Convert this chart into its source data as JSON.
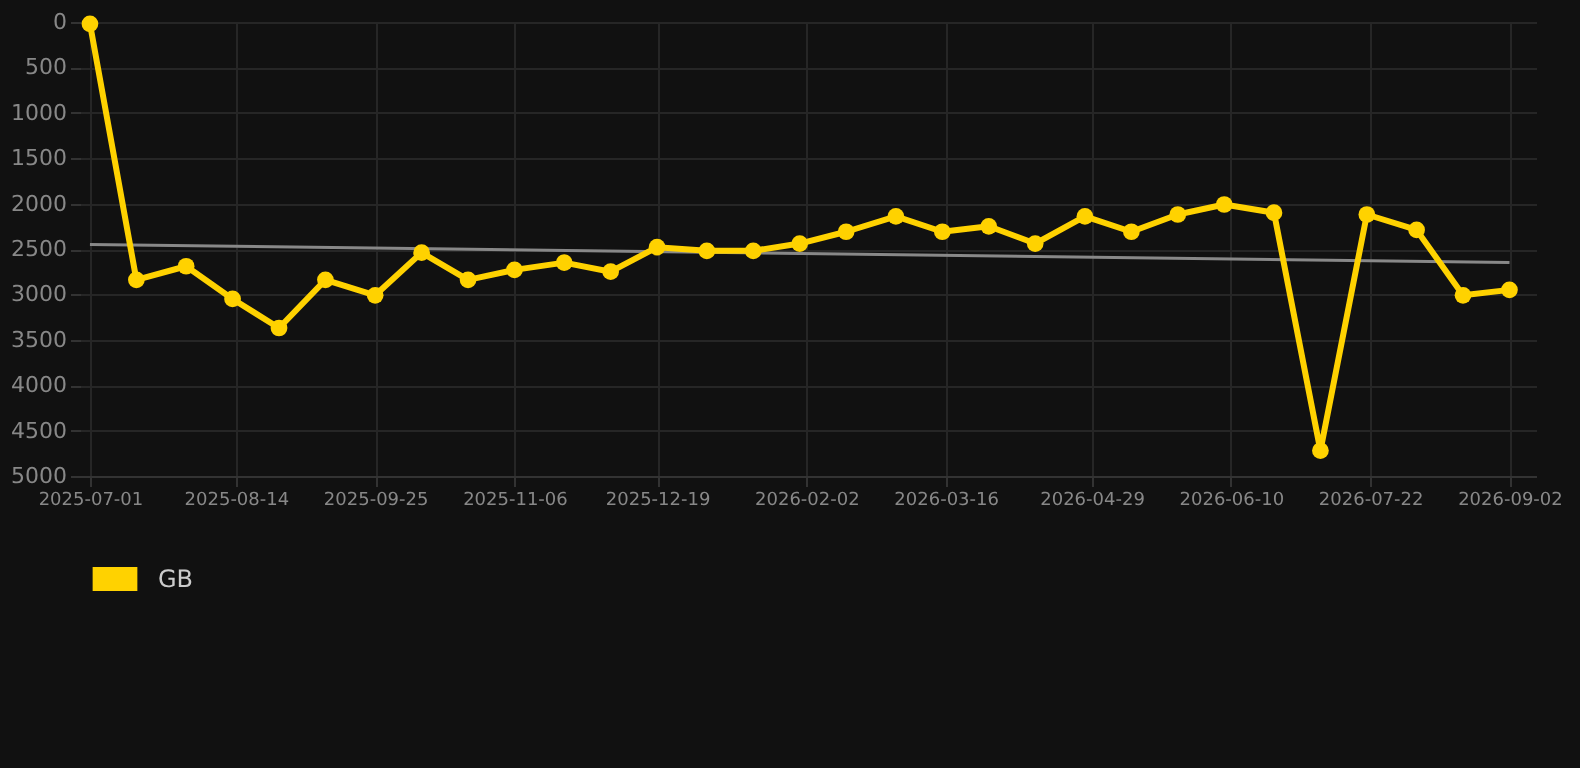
{
  "chart_data": {
    "type": "line",
    "xlim": [
      "2025-06-28",
      "2026-09-10"
    ],
    "ylim": [
      5000,
      0
    ],
    "xticks": [
      "2025-07-01",
      "2025-08-14",
      "2025-09-25",
      "2025-11-06",
      "2025-12-19",
      "2026-02-02",
      "2026-03-16",
      "2026-04-29",
      "2026-06-10",
      "2026-07-22",
      "2026-09-02"
    ],
    "yticks": [
      0,
      500,
      1000,
      1500,
      2000,
      2500,
      3000,
      3500,
      4000,
      4500,
      5000
    ],
    "grid": true,
    "legend": "bottom",
    "marker": "circle",
    "line_style": "solid",
    "x": [
      "2025-07-01",
      "2025-07-15",
      "2025-07-30",
      "2025-08-13",
      "2025-08-27",
      "2025-09-10",
      "2025-09-25",
      "2025-10-09",
      "2025-10-23",
      "2025-11-06",
      "2025-11-21",
      "2025-12-05",
      "2025-12-19",
      "2026-01-03",
      "2026-01-17",
      "2026-01-31",
      "2026-02-14",
      "2026-03-01",
      "2026-03-15",
      "2026-03-29",
      "2026-04-12",
      "2026-04-27",
      "2026-05-11",
      "2026-05-25",
      "2026-06-08",
      "2026-06-23",
      "2026-07-07",
      "2026-07-21",
      "2026-08-05",
      "2026-08-19",
      "2026-09-02"
    ],
    "series": [
      {
        "name": "GB",
        "color": "#ffd200",
        "values": [
          20,
          2840,
          2690,
          3050,
          3370,
          2840,
          3010,
          2540,
          2840,
          2730,
          2650,
          2750,
          2480,
          2520,
          2520,
          2440,
          2310,
          2140,
          2310,
          2250,
          2440,
          2140,
          2310,
          2120,
          2010,
          2100,
          4720,
          2120,
          2290,
          3010,
          2950
        ]
      },
      {
        "type": "line",
        "marker": "none",
        "color": "#888888",
        "x": [
          "2025-07-01",
          "2026-09-02"
        ],
        "values": [
          2450,
          2650
        ]
      }
    ]
  }
}
